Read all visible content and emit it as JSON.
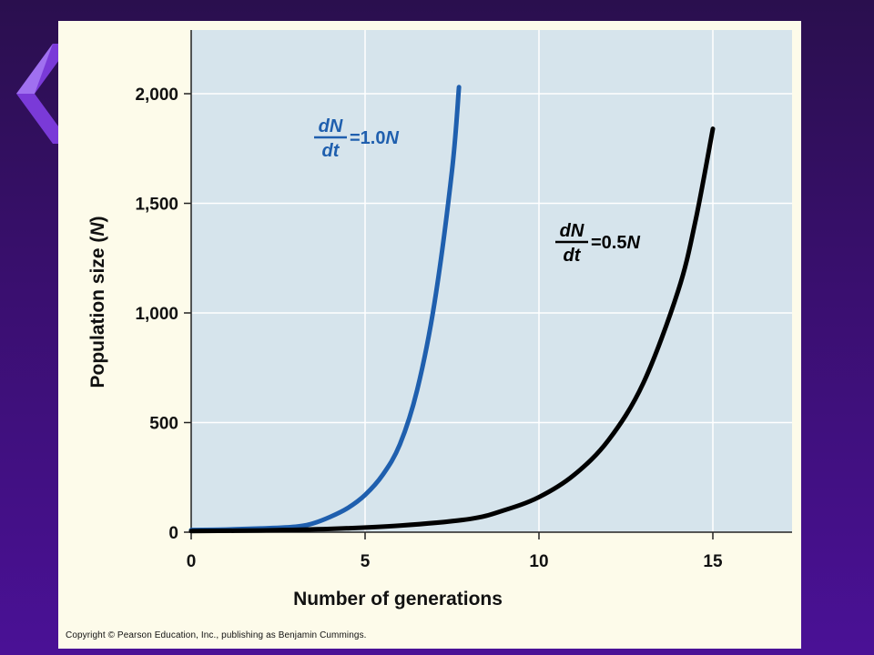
{
  "slide": {
    "copyright": "Copyright © Pearson Education, Inc., publishing as Benjamin Cummings."
  },
  "colors": {
    "background": "#3a0f70",
    "card": "#fdfbea",
    "plot_area": "#d6e4ec",
    "series_1": "#1f5fae",
    "series_2": "#000000"
  },
  "chart_data": {
    "type": "line",
    "title": "",
    "xlabel": "Number of generations",
    "ylabel": "Population size (N)",
    "ylabel_main": "Population size (",
    "ylabel_var": "N",
    "ylabel_close": ")",
    "xlim": [
      0,
      17.2
    ],
    "ylim": [
      0,
      2250
    ],
    "x_ticks": [
      0,
      5,
      10,
      15
    ],
    "x_tick_labels": [
      "0",
      "5",
      "10",
      "15"
    ],
    "y_ticks": [
      0,
      500,
      1000,
      1500,
      2000
    ],
    "y_tick_labels": [
      "0",
      "500",
      "1,000",
      "1,500",
      "2,000"
    ],
    "grid": true,
    "series": [
      {
        "label_num": "dN",
        "label_den": "dt",
        "label_rhs": "=1.0",
        "label_var": "N",
        "x": [
          0,
          1,
          2,
          3,
          3.5,
          4,
          4.5,
          5,
          5.5,
          6,
          6.5,
          7,
          7.5,
          7.7
        ],
        "y": [
          10,
          12,
          17,
          25,
          40,
          70,
          110,
          170,
          260,
          400,
          650,
          1050,
          1650,
          2030
        ]
      },
      {
        "label_num": "dN",
        "label_den": "dt",
        "label_rhs": "=0.5",
        "label_var": "N",
        "x": [
          0,
          2,
          4,
          6,
          8,
          9,
          10,
          11,
          12,
          13,
          14,
          14.5,
          15
        ],
        "y": [
          5,
          8,
          15,
          30,
          60,
          100,
          160,
          260,
          420,
          680,
          1100,
          1420,
          1840
        ]
      }
    ]
  }
}
